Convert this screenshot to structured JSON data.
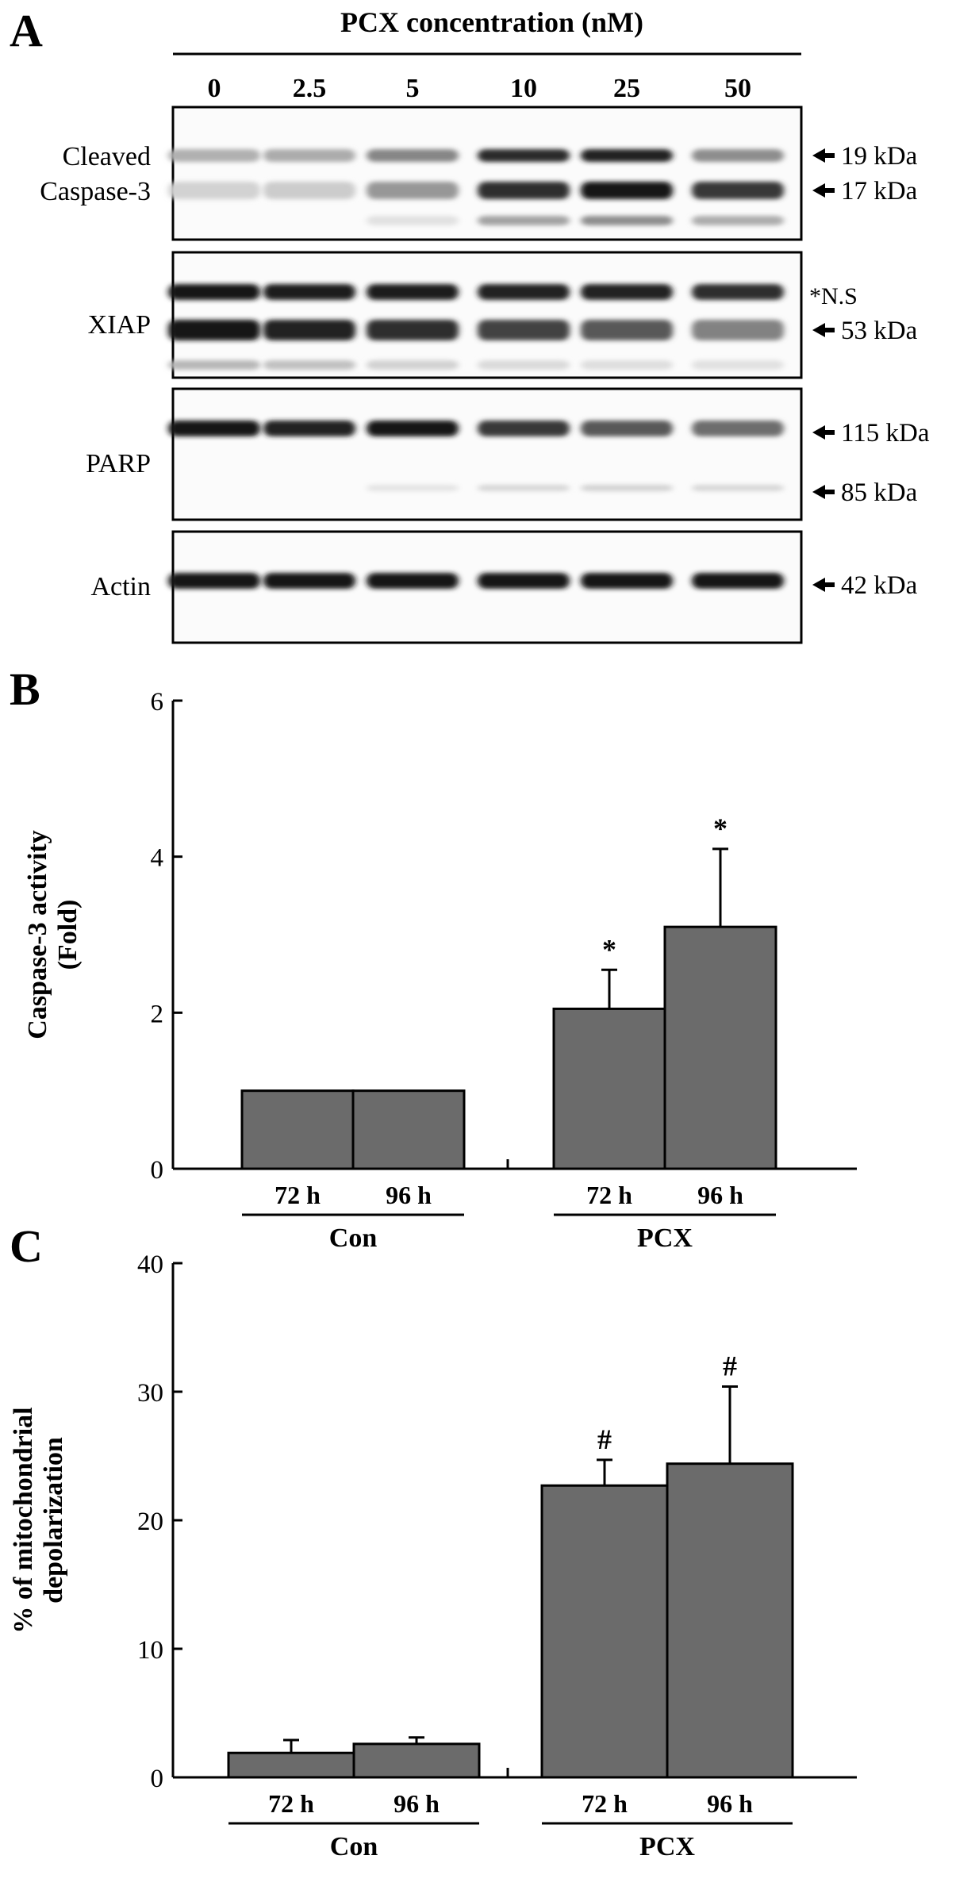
{
  "panel_a": {
    "letter": "A",
    "header": "PCX concentration (nM)",
    "lanes": [
      "0",
      "2.5",
      "5",
      "10",
      "25",
      "50"
    ],
    "blots": [
      {
        "label_lines": [
          "Cleaved",
          "Caspase-3"
        ],
        "markers": [
          "19 kDa",
          "17 kDa"
        ],
        "bands": [
          {
            "name": "19 kDa",
            "intensity": [
              0.28,
              0.3,
              0.48,
              0.92,
              0.95,
              0.45
            ]
          },
          {
            "name": "17 kDa",
            "intensity": [
              0.12,
              0.15,
              0.4,
              0.9,
              1.0,
              0.85
            ]
          },
          {
            "name": "lower",
            "intensity": [
              0.0,
              0.0,
              0.05,
              0.35,
              0.45,
              0.3
            ]
          }
        ]
      },
      {
        "label_lines": [
          "XIAP"
        ],
        "markers": [
          "*N.S",
          "53 kDa"
        ],
        "bands": [
          {
            "name": "N.S",
            "intensity": [
              1.0,
              0.98,
              0.98,
              0.96,
              0.95,
              0.9
            ]
          },
          {
            "name": "53 kDa",
            "intensity": [
              1.0,
              0.95,
              0.9,
              0.8,
              0.7,
              0.5
            ]
          },
          {
            "name": "lower",
            "intensity": [
              0.25,
              0.2,
              0.12,
              0.08,
              0.06,
              0.05
            ]
          }
        ]
      },
      {
        "label_lines": [
          "PARP"
        ],
        "markers": [
          "115 kDa",
          "85 kDa"
        ],
        "bands": [
          {
            "name": "115 kDa",
            "intensity": [
              1.0,
              0.95,
              1.0,
              0.85,
              0.7,
              0.6
            ]
          },
          {
            "name": "85 kDa",
            "intensity": [
              0.0,
              0.0,
              0.04,
              0.1,
              0.12,
              0.1
            ]
          }
        ]
      },
      {
        "label_lines": [
          "Actin"
        ],
        "markers": [
          "42 kDa"
        ],
        "bands": [
          {
            "name": "42 kDa",
            "intensity": [
              1.0,
              1.0,
              1.0,
              1.0,
              1.0,
              1.0
            ]
          }
        ]
      }
    ]
  },
  "chart_data": [
    {
      "panel": "B",
      "type": "bar",
      "ylabel_lines": [
        "Caspase-3  activity",
        "(Fold)"
      ],
      "ylim": [
        0,
        6
      ],
      "yticks": [
        "0",
        "2",
        "4",
        "6"
      ],
      "groups": [
        {
          "label": "Con",
          "bars": [
            {
              "label": "72 h",
              "value": 1.0,
              "error": 0,
              "sig": ""
            },
            {
              "label": "96 h",
              "value": 1.0,
              "error": 0,
              "sig": ""
            }
          ]
        },
        {
          "label": "PCX",
          "bars": [
            {
              "label": "72 h",
              "value": 2.05,
              "error": 0.5,
              "sig": "*"
            },
            {
              "label": "96 h",
              "value": 3.1,
              "error": 1.0,
              "sig": "*"
            }
          ]
        }
      ],
      "bar_color": "#6b6b6b"
    },
    {
      "panel": "C",
      "type": "bar",
      "ylabel_lines": [
        "% of mitochondrial",
        "depolarization"
      ],
      "ylim": [
        0,
        40
      ],
      "yticks": [
        "0",
        "10",
        "20",
        "30",
        "40"
      ],
      "groups": [
        {
          "label": "Con",
          "bars": [
            {
              "label": "72 h",
              "value": 1.9,
              "error": 1.0,
              "sig": ""
            },
            {
              "label": "96 h",
              "value": 2.6,
              "error": 0.5,
              "sig": ""
            }
          ]
        },
        {
          "label": "PCX",
          "bars": [
            {
              "label": "72 h",
              "value": 22.7,
              "error": 2.0,
              "sig": "#"
            },
            {
              "label": "96 h",
              "value": 24.4,
              "error": 6.0,
              "sig": "#"
            }
          ]
        }
      ],
      "bar_color": "#6b6b6b"
    }
  ]
}
